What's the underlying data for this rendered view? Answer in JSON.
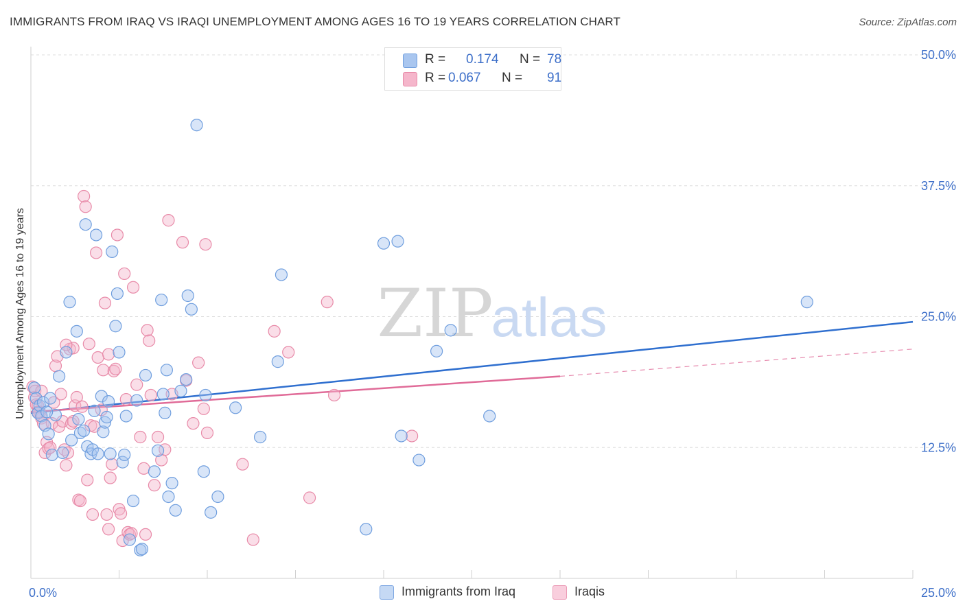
{
  "title": "IMMIGRANTS FROM IRAQ VS IRAQI UNEMPLOYMENT AMONG AGES 16 TO 19 YEARS CORRELATION CHART",
  "source": "Source: ZipAtlas.com",
  "watermark": {
    "zip": "ZIP",
    "atlas": "atlas"
  },
  "legend": {
    "series": [
      {
        "r_label": "R =",
        "r_value": "0.174",
        "n_label": "N =",
        "n_value": "78"
      },
      {
        "r_label": "R =",
        "r_value": "0.067",
        "n_label": "N =",
        "n_value": "91"
      }
    ]
  },
  "bottom_legend": [
    "Immigrants from Iraq",
    "Iraqis"
  ],
  "colors": {
    "blue_fill": "#a9c6ef",
    "blue_stroke": "#6f9ede",
    "blue_line": "#2f6fcf",
    "pink_fill": "#f5b6cb",
    "pink_stroke": "#e88aa8",
    "pink_line": "#e06b98",
    "tick_blue": "#3d6fc9",
    "grid": "#dcdcdc"
  },
  "chart_data": {
    "type": "scatter",
    "title": "IMMIGRANTS FROM IRAQ VS IRAQI UNEMPLOYMENT AMONG AGES 16 TO 19 YEARS CORRELATION CHART",
    "xlabel": "",
    "ylabel": "Unemployment Among Ages 16 to 19 years",
    "xlim": [
      0,
      25
    ],
    "ylim": [
      0,
      50
    ],
    "x_tick_labels": [
      "0.0%",
      "25.0%"
    ],
    "y_ticks": [
      12.5,
      25.0,
      37.5,
      50.0
    ],
    "y_tick_labels": [
      "12.5%",
      "25.0%",
      "37.5%",
      "50.0%"
    ],
    "grid": true,
    "legend_position": "top-center",
    "series": [
      {
        "name": "Immigrants from Iraq",
        "color": "#a9c6ef",
        "trend": {
          "x": [
            0,
            25
          ],
          "y": [
            15.8,
            24.5
          ],
          "style": "solid"
        },
        "points": [
          [
            0.1,
            18.2
          ],
          [
            0.15,
            17.2
          ],
          [
            0.2,
            15.8
          ],
          [
            0.25,
            16.5
          ],
          [
            0.3,
            15.5
          ],
          [
            0.35,
            16.8
          ],
          [
            0.4,
            14.6
          ],
          [
            0.5,
            13.8
          ],
          [
            0.55,
            17.2
          ],
          [
            0.6,
            11.8
          ],
          [
            0.7,
            15.6
          ],
          [
            0.8,
            19.3
          ],
          [
            0.9,
            12.0
          ],
          [
            1.0,
            21.6
          ],
          [
            1.1,
            26.4
          ],
          [
            1.15,
            13.2
          ],
          [
            1.3,
            23.6
          ],
          [
            1.35,
            15.2
          ],
          [
            1.4,
            13.9
          ],
          [
            1.5,
            14.1
          ],
          [
            1.55,
            33.8
          ],
          [
            1.6,
            12.6
          ],
          [
            1.7,
            11.9
          ],
          [
            1.75,
            12.3
          ],
          [
            1.8,
            16.0
          ],
          [
            1.85,
            32.8
          ],
          [
            1.9,
            11.9
          ],
          [
            2.0,
            17.4
          ],
          [
            2.05,
            14.0
          ],
          [
            2.1,
            14.9
          ],
          [
            2.15,
            15.4
          ],
          [
            2.2,
            16.9
          ],
          [
            2.25,
            11.9
          ],
          [
            2.3,
            31.2
          ],
          [
            2.4,
            24.1
          ],
          [
            2.45,
            27.2
          ],
          [
            2.5,
            21.6
          ],
          [
            2.6,
            11.1
          ],
          [
            2.65,
            11.8
          ],
          [
            2.7,
            15.5
          ],
          [
            2.8,
            3.7
          ],
          [
            2.9,
            7.4
          ],
          [
            3.0,
            17.0
          ],
          [
            3.1,
            2.7
          ],
          [
            3.15,
            2.8
          ],
          [
            3.25,
            19.4
          ],
          [
            3.5,
            10.2
          ],
          [
            3.6,
            12.2
          ],
          [
            3.7,
            26.6
          ],
          [
            3.75,
            17.6
          ],
          [
            3.8,
            15.8
          ],
          [
            3.85,
            19.9
          ],
          [
            3.9,
            7.8
          ],
          [
            4.0,
            9.1
          ],
          [
            4.1,
            6.5
          ],
          [
            4.25,
            17.9
          ],
          [
            4.4,
            19.0
          ],
          [
            4.45,
            27.0
          ],
          [
            4.55,
            25.7
          ],
          [
            4.7,
            43.3
          ],
          [
            4.9,
            10.2
          ],
          [
            4.95,
            17.5
          ],
          [
            5.1,
            6.3
          ],
          [
            5.3,
            7.8
          ],
          [
            5.8,
            16.3
          ],
          [
            6.5,
            13.5
          ],
          [
            7.0,
            20.7
          ],
          [
            7.1,
            29.0
          ],
          [
            9.5,
            4.7
          ],
          [
            10.0,
            32.0
          ],
          [
            10.4,
            32.2
          ],
          [
            10.5,
            13.6
          ],
          [
            11.0,
            11.3
          ],
          [
            11.5,
            21.7
          ],
          [
            11.9,
            23.7
          ],
          [
            13.0,
            15.5
          ],
          [
            22.0,
            26.4
          ],
          [
            0.45,
            15.9
          ]
        ]
      },
      {
        "name": "Iraqis",
        "color": "#f5b6cb",
        "trend": {
          "x": [
            0,
            15
          ],
          "y": [
            15.9,
            19.3
          ],
          "extended": {
            "x": [
              15,
              25
            ],
            "y": [
              19.3,
              21.9
            ]
          },
          "style": "solid then dashed"
        },
        "points": [
          [
            0.05,
            18.3
          ],
          [
            0.1,
            17.3
          ],
          [
            0.12,
            17.9
          ],
          [
            0.15,
            16.6
          ],
          [
            0.2,
            16.5
          ],
          [
            0.25,
            15.9
          ],
          [
            0.3,
            15.3
          ],
          [
            0.35,
            14.8
          ],
          [
            0.4,
            12.0
          ],
          [
            0.45,
            13.0
          ],
          [
            0.5,
            12.4
          ],
          [
            0.55,
            12.5
          ],
          [
            0.6,
            14.8
          ],
          [
            0.65,
            16.8
          ],
          [
            0.7,
            20.3
          ],
          [
            0.75,
            21.2
          ],
          [
            0.8,
            14.5
          ],
          [
            0.85,
            17.6
          ],
          [
            0.9,
            15.0
          ],
          [
            0.95,
            12.3
          ],
          [
            1.0,
            10.8
          ],
          [
            1.05,
            12.0
          ],
          [
            1.1,
            21.9
          ],
          [
            1.15,
            14.8
          ],
          [
            1.2,
            22.0
          ],
          [
            1.25,
            16.5
          ],
          [
            1.3,
            17.3
          ],
          [
            1.35,
            7.5
          ],
          [
            1.4,
            7.4
          ],
          [
            1.5,
            36.5
          ],
          [
            1.55,
            35.5
          ],
          [
            1.6,
            9.4
          ],
          [
            1.65,
            22.4
          ],
          [
            1.7,
            14.6
          ],
          [
            1.75,
            6.1
          ],
          [
            1.8,
            14.5
          ],
          [
            1.85,
            31.1
          ],
          [
            1.9,
            21.1
          ],
          [
            2.0,
            16.1
          ],
          [
            2.05,
            19.9
          ],
          [
            2.1,
            26.3
          ],
          [
            2.15,
            6.1
          ],
          [
            2.2,
            4.7
          ],
          [
            2.25,
            9.6
          ],
          [
            2.3,
            10.9
          ],
          [
            2.35,
            19.8
          ],
          [
            2.4,
            20.0
          ],
          [
            2.45,
            32.8
          ],
          [
            2.5,
            6.6
          ],
          [
            2.55,
            6.2
          ],
          [
            2.6,
            3.6
          ],
          [
            2.65,
            29.1
          ],
          [
            2.7,
            17.1
          ],
          [
            2.75,
            4.4
          ],
          [
            2.8,
            4.2
          ],
          [
            2.9,
            27.8
          ],
          [
            3.0,
            18.5
          ],
          [
            3.1,
            13.5
          ],
          [
            3.2,
            10.5
          ],
          [
            3.3,
            23.7
          ],
          [
            3.35,
            22.7
          ],
          [
            3.4,
            17.5
          ],
          [
            3.5,
            8.9
          ],
          [
            3.6,
            13.5
          ],
          [
            3.7,
            11.3
          ],
          [
            3.8,
            12.3
          ],
          [
            3.9,
            34.2
          ],
          [
            4.0,
            17.6
          ],
          [
            4.3,
            32.1
          ],
          [
            4.4,
            18.9
          ],
          [
            4.6,
            14.8
          ],
          [
            4.75,
            20.6
          ],
          [
            4.9,
            16.2
          ],
          [
            4.95,
            31.9
          ],
          [
            5.0,
            13.9
          ],
          [
            6.0,
            10.9
          ],
          [
            6.3,
            3.7
          ],
          [
            6.9,
            23.6
          ],
          [
            7.3,
            21.6
          ],
          [
            7.9,
            7.7
          ],
          [
            8.4,
            26.4
          ],
          [
            8.6,
            17.5
          ],
          [
            10.8,
            13.6
          ],
          [
            0.2,
            15.9
          ],
          [
            0.3,
            17.9
          ],
          [
            1.0,
            22.3
          ],
          [
            1.45,
            16.4
          ],
          [
            2.85,
            4.3
          ],
          [
            3.25,
            4.2
          ],
          [
            2.2,
            21.4
          ],
          [
            1.2,
            15.0
          ]
        ]
      }
    ]
  }
}
